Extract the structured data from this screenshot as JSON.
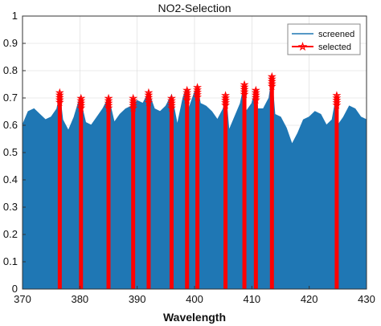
{
  "chart_data": {
    "type": "area",
    "title": "NO2-Selection",
    "xlabel": "Wavelength",
    "ylabel": "",
    "xlim": [
      370,
      430
    ],
    "ylim": [
      0,
      1
    ],
    "xticks": [
      "370",
      "380",
      "390",
      "400",
      "410",
      "420",
      "430"
    ],
    "yticks": [
      "0",
      "0.1",
      "0.2",
      "0.3",
      "0.4",
      "0.5",
      "0.6",
      "0.7",
      "0.8",
      "0.9",
      "1"
    ],
    "grid": true,
    "legend_position": "top-right",
    "colors": {
      "screened": "#1f77b4",
      "selected": "#ff0000"
    },
    "series": [
      {
        "name": "screened",
        "style": "filled-line",
        "x": [
          370,
          371,
          372,
          373,
          374,
          375,
          376,
          376.5,
          377,
          378,
          379,
          380,
          381,
          382,
          383,
          384,
          385,
          386,
          387,
          388,
          389,
          390,
          391,
          392,
          393,
          394,
          395,
          396,
          397,
          398,
          398.5,
          399,
          400,
          400.5,
          401,
          402,
          403,
          404,
          405,
          405.5,
          406,
          407,
          408,
          408.7,
          409,
          410,
          410.7,
          411,
          412,
          413,
          413.5,
          414,
          415,
          416,
          417,
          418,
          419,
          420,
          421,
          422,
          423,
          424,
          424.7,
          425,
          426,
          427,
          428,
          429,
          430
        ],
        "y": [
          0.6,
          0.65,
          0.66,
          0.64,
          0.62,
          0.63,
          0.66,
          0.71,
          0.62,
          0.58,
          0.63,
          0.7,
          0.61,
          0.6,
          0.63,
          0.66,
          0.7,
          0.61,
          0.64,
          0.66,
          0.67,
          0.69,
          0.68,
          0.72,
          0.66,
          0.65,
          0.67,
          0.71,
          0.6,
          0.7,
          0.73,
          0.66,
          0.72,
          0.74,
          0.68,
          0.67,
          0.65,
          0.62,
          0.66,
          0.7,
          0.58,
          0.63,
          0.68,
          0.75,
          0.65,
          0.68,
          0.73,
          0.66,
          0.66,
          0.7,
          0.77,
          0.64,
          0.63,
          0.59,
          0.53,
          0.57,
          0.62,
          0.63,
          0.65,
          0.64,
          0.6,
          0.62,
          0.7,
          0.6,
          0.63,
          0.67,
          0.66,
          0.63,
          0.62
        ]
      },
      {
        "name": "selected",
        "style": "stem-star",
        "x": [
          376.5,
          380.2,
          385,
          389.3,
          392,
          396,
          398.7,
          400.5,
          405.4,
          408.7,
          410.7,
          413.5,
          424.8
        ],
        "y": [
          0.72,
          0.7,
          0.7,
          0.7,
          0.72,
          0.7,
          0.73,
          0.74,
          0.71,
          0.75,
          0.73,
          0.78,
          0.71
        ]
      }
    ]
  }
}
